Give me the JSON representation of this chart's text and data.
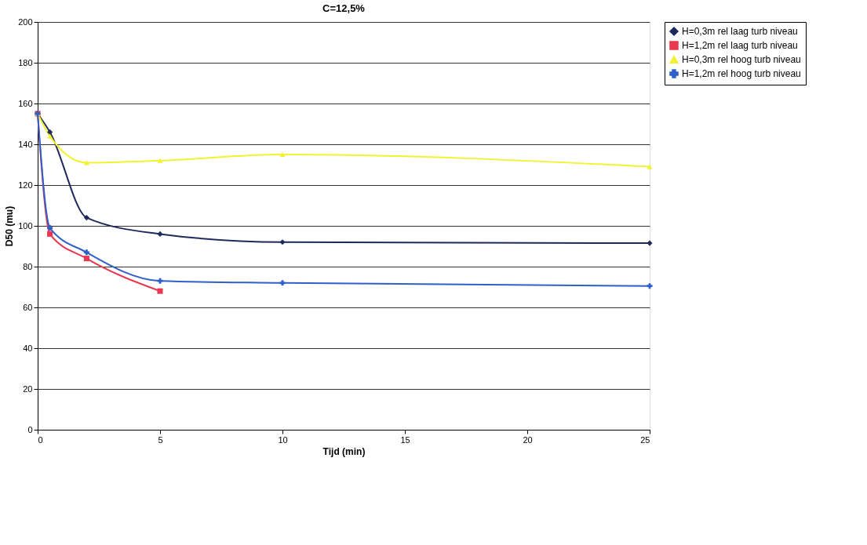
{
  "chart_data": {
    "type": "line",
    "title": "C=12,5%",
    "xlabel": "Tijd (min)",
    "ylabel": "D50 (mu)",
    "x": [
      0,
      0.5,
      2,
      5,
      10,
      25
    ],
    "series": [
      {
        "name": "H=0,3m rel laag turb niveau",
        "color": "#1f2a5c",
        "marker": "diamond",
        "values": [
          155,
          146,
          104,
          96,
          92,
          91.5
        ]
      },
      {
        "name": "H=1,2m rel laag turb niveau",
        "color": "#e8384f",
        "marker": "square",
        "values": [
          155,
          96,
          84,
          68,
          null,
          null
        ]
      },
      {
        "name": "H=0,3m rel hoog turb niveau",
        "color": "#f2f230",
        "marker": "triangle",
        "values": [
          155,
          144,
          131,
          132,
          135,
          129
        ]
      },
      {
        "name": "H=1,2m rel hoog turb niveau",
        "color": "#2f5fc8",
        "marker": "cross",
        "values": [
          155,
          99,
          87,
          73,
          72,
          70.5
        ]
      }
    ],
    "xlim": [
      0,
      25
    ],
    "xticks": [
      0,
      5,
      10,
      15,
      20,
      25
    ],
    "ylim": [
      0,
      200
    ],
    "yticks": [
      0,
      20,
      40,
      60,
      80,
      100,
      120,
      140,
      160,
      180,
      200
    ],
    "grid": "y",
    "legend": "right",
    "line_style": "solid"
  }
}
